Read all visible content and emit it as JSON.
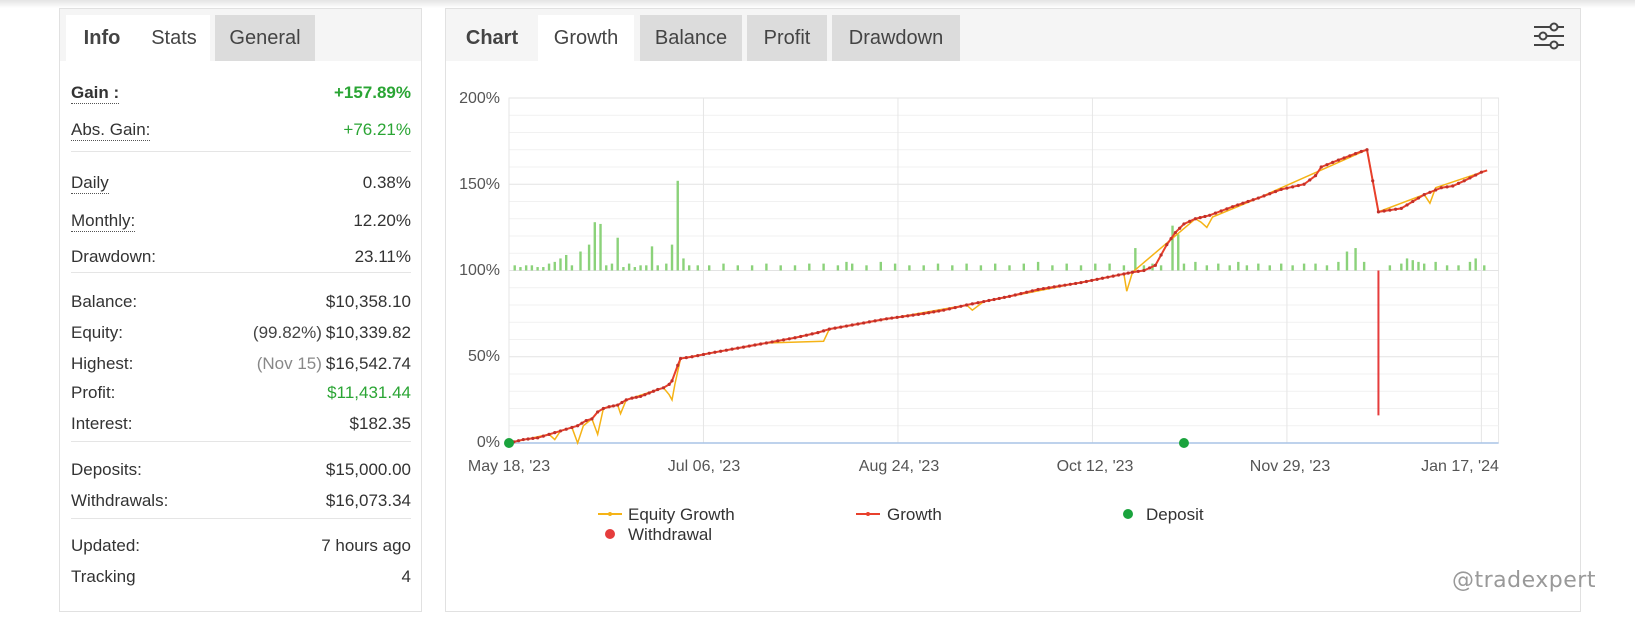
{
  "left": {
    "tabs": [
      {
        "label": "Info"
      },
      {
        "label": "Stats"
      },
      {
        "label": "General"
      }
    ],
    "rows": [
      {
        "label": "Gain :",
        "value": "+157.89%"
      },
      {
        "label": "Abs. Gain:",
        "value": "+76.21%"
      },
      {
        "label": "Daily",
        "value": "0.38%"
      },
      {
        "label": "Monthly:",
        "value": "12.20%"
      },
      {
        "label": "Drawdown:",
        "value": "23.11%"
      },
      {
        "label": "Balance:",
        "value": "$10,358.10"
      },
      {
        "label": "Equity:",
        "prefix": "(99.82%)",
        "value": "$10,339.82"
      },
      {
        "label": "Highest:",
        "prefix": "(Nov 15)",
        "value": "$16,542.74"
      },
      {
        "label": "Profit:",
        "value": "$11,431.44"
      },
      {
        "label": "Interest:",
        "value": "$182.35"
      },
      {
        "label": "Deposits:",
        "value": "$15,000.00"
      },
      {
        "label": "Withdrawals:",
        "value": "$16,073.34"
      },
      {
        "label": "Updated:",
        "value": "7 hours ago"
      },
      {
        "label": "Tracking",
        "value": "4"
      }
    ]
  },
  "right": {
    "tabs": [
      {
        "label": "Chart"
      },
      {
        "label": "Growth"
      },
      {
        "label": "Balance"
      },
      {
        "label": "Profit"
      },
      {
        "label": "Drawdown"
      }
    ],
    "settings_icon": "sliders-icon"
  },
  "colors": {
    "gain_green": "#2aa534",
    "growth_red": "#e8402c",
    "equity_yellow": "#f5b316",
    "deposit_green": "#1aa33d",
    "withdrawal_red": "#e53c3c",
    "bar_green": "#8bd27a"
  },
  "chart_data": {
    "type": "line",
    "x_labels": [
      "May 18, '23",
      "Jul 06, '23",
      "Aug 24, '23",
      "Oct 12, '23",
      "Nov 29, '23",
      "Jan 17, '24"
    ],
    "y_labels": [
      "0%",
      "50%",
      "100%",
      "150%",
      "200%"
    ],
    "ylim": [
      0,
      200
    ],
    "grid": true,
    "legend": [
      "Equity Growth",
      "Growth",
      "Deposit",
      "Withdrawal"
    ],
    "legend_position": "bottom",
    "series": [
      {
        "name": "Growth",
        "points": [
          [
            0,
            0
          ],
          [
            5,
            2
          ],
          [
            10,
            3
          ],
          [
            14,
            5
          ],
          [
            16,
            6
          ],
          [
            18,
            7
          ],
          [
            22,
            9
          ],
          [
            24,
            10
          ],
          [
            27,
            13
          ],
          [
            29,
            14
          ],
          [
            31,
            18
          ],
          [
            33,
            20
          ],
          [
            35,
            21
          ],
          [
            38,
            22
          ],
          [
            41,
            25
          ],
          [
            43,
            26
          ],
          [
            46,
            27
          ],
          [
            49,
            29
          ],
          [
            52,
            31
          ],
          [
            54,
            32
          ],
          [
            56,
            34
          ],
          [
            57,
            36
          ],
          [
            59,
            45
          ],
          [
            60,
            49
          ],
          [
            64,
            50
          ],
          [
            70,
            52
          ],
          [
            80,
            55
          ],
          [
            90,
            58
          ],
          [
            100,
            61
          ],
          [
            108,
            64
          ],
          [
            112,
            66
          ],
          [
            122,
            69
          ],
          [
            132,
            72
          ],
          [
            145,
            75
          ],
          [
            152,
            77
          ],
          [
            160,
            80
          ],
          [
            166,
            82
          ],
          [
            175,
            85
          ],
          [
            185,
            89
          ],
          [
            200,
            93
          ],
          [
            215,
            98
          ],
          [
            218,
            99
          ],
          [
            222,
            100
          ],
          [
            226,
            103
          ],
          [
            230,
            115
          ],
          [
            233,
            122
          ],
          [
            236,
            127
          ],
          [
            240,
            130
          ],
          [
            245,
            132
          ],
          [
            253,
            137
          ],
          [
            262,
            142
          ],
          [
            270,
            147
          ],
          [
            278,
            150
          ],
          [
            282,
            155
          ],
          [
            284,
            160
          ],
          [
            290,
            164
          ],
          [
            298,
            169
          ],
          [
            300,
            170
          ],
          [
            304,
            134
          ],
          [
            312,
            136
          ],
          [
            316,
            140
          ],
          [
            320,
            144
          ],
          [
            326,
            148
          ],
          [
            330,
            149
          ],
          [
            334,
            152
          ],
          [
            340,
            157
          ],
          [
            342,
            158
          ]
        ]
      },
      {
        "name": "Equity Growth",
        "points": [
          [
            0,
            0
          ],
          [
            14,
            5
          ],
          [
            16,
            2
          ],
          [
            18,
            7
          ],
          [
            22,
            9
          ],
          [
            24,
            0
          ],
          [
            26,
            10
          ],
          [
            29,
            14
          ],
          [
            31,
            5
          ],
          [
            33,
            20
          ],
          [
            38,
            22
          ],
          [
            39,
            17
          ],
          [
            41,
            25
          ],
          [
            54,
            32
          ],
          [
            56,
            28
          ],
          [
            57,
            25
          ],
          [
            58,
            34
          ],
          [
            60,
            49
          ],
          [
            90,
            58
          ],
          [
            110,
            59
          ],
          [
            112,
            66
          ],
          [
            160,
            80
          ],
          [
            162,
            77
          ],
          [
            166,
            82
          ],
          [
            215,
            98
          ],
          [
            216,
            88
          ],
          [
            218,
            99
          ],
          [
            240,
            130
          ],
          [
            242,
            128
          ],
          [
            244,
            125
          ],
          [
            246,
            131
          ],
          [
            262,
            142
          ],
          [
            300,
            170
          ],
          [
            304,
            134
          ],
          [
            320,
            144
          ],
          [
            322,
            139
          ],
          [
            324,
            148
          ],
          [
            342,
            158
          ]
        ]
      },
      {
        "name": "Deposit",
        "points": [
          [
            0,
            0
          ],
          [
            236,
            0
          ]
        ]
      },
      {
        "name": "Withdrawal",
        "points": [
          [
            304,
            100
          ],
          [
            304,
            16
          ]
        ]
      }
    ],
    "bars": [
      [
        2,
        3
      ],
      [
        4,
        2
      ],
      [
        6,
        3
      ],
      [
        8,
        3
      ],
      [
        10,
        2
      ],
      [
        12,
        2
      ],
      [
        14,
        4
      ],
      [
        16,
        5
      ],
      [
        18,
        7
      ],
      [
        20,
        9
      ],
      [
        22,
        3
      ],
      [
        25,
        11
      ],
      [
        28,
        15
      ],
      [
        30,
        28
      ],
      [
        32,
        27
      ],
      [
        34,
        3
      ],
      [
        36,
        4
      ],
      [
        38,
        19
      ],
      [
        40,
        2
      ],
      [
        42,
        4
      ],
      [
        44,
        2
      ],
      [
        46,
        3
      ],
      [
        48,
        3
      ],
      [
        50,
        14
      ],
      [
        52,
        3
      ],
      [
        55,
        4
      ],
      [
        57,
        15
      ],
      [
        59,
        52
      ],
      [
        61,
        7
      ],
      [
        63,
        3
      ],
      [
        66,
        3
      ],
      [
        70,
        3
      ],
      [
        75,
        4
      ],
      [
        80,
        3
      ],
      [
        85,
        3
      ],
      [
        90,
        4
      ],
      [
        95,
        3
      ],
      [
        100,
        3
      ],
      [
        105,
        4
      ],
      [
        110,
        4
      ],
      [
        115,
        3
      ],
      [
        118,
        5
      ],
      [
        120,
        4
      ],
      [
        125,
        3
      ],
      [
        130,
        5
      ],
      [
        135,
        4
      ],
      [
        140,
        3
      ],
      [
        145,
        3
      ],
      [
        150,
        4
      ],
      [
        155,
        3
      ],
      [
        160,
        4
      ],
      [
        165,
        3
      ],
      [
        170,
        4
      ],
      [
        175,
        3
      ],
      [
        180,
        4
      ],
      [
        185,
        5
      ],
      [
        190,
        3
      ],
      [
        195,
        4
      ],
      [
        200,
        3
      ],
      [
        205,
        4
      ],
      [
        210,
        4
      ],
      [
        215,
        3
      ],
      [
        219,
        13
      ],
      [
        222,
        3
      ],
      [
        225,
        4
      ],
      [
        228,
        3
      ],
      [
        232,
        26
      ],
      [
        234,
        21
      ],
      [
        236,
        4
      ],
      [
        240,
        5
      ],
      [
        244,
        3
      ],
      [
        248,
        4
      ],
      [
        252,
        3
      ],
      [
        255,
        5
      ],
      [
        258,
        3
      ],
      [
        262,
        4
      ],
      [
        266,
        3
      ],
      [
        270,
        4
      ],
      [
        274,
        3
      ],
      [
        278,
        4
      ],
      [
        282,
        4
      ],
      [
        286,
        3
      ],
      [
        290,
        5
      ],
      [
        293,
        11
      ],
      [
        296,
        13
      ],
      [
        299,
        5
      ],
      [
        308,
        3
      ],
      [
        312,
        4
      ],
      [
        314,
        7
      ],
      [
        316,
        6
      ],
      [
        318,
        5
      ],
      [
        320,
        4
      ],
      [
        324,
        5
      ],
      [
        328,
        3
      ],
      [
        332,
        3
      ],
      [
        336,
        5
      ],
      [
        338,
        7
      ],
      [
        341,
        3
      ]
    ]
  },
  "watermark": "@tradexpert"
}
